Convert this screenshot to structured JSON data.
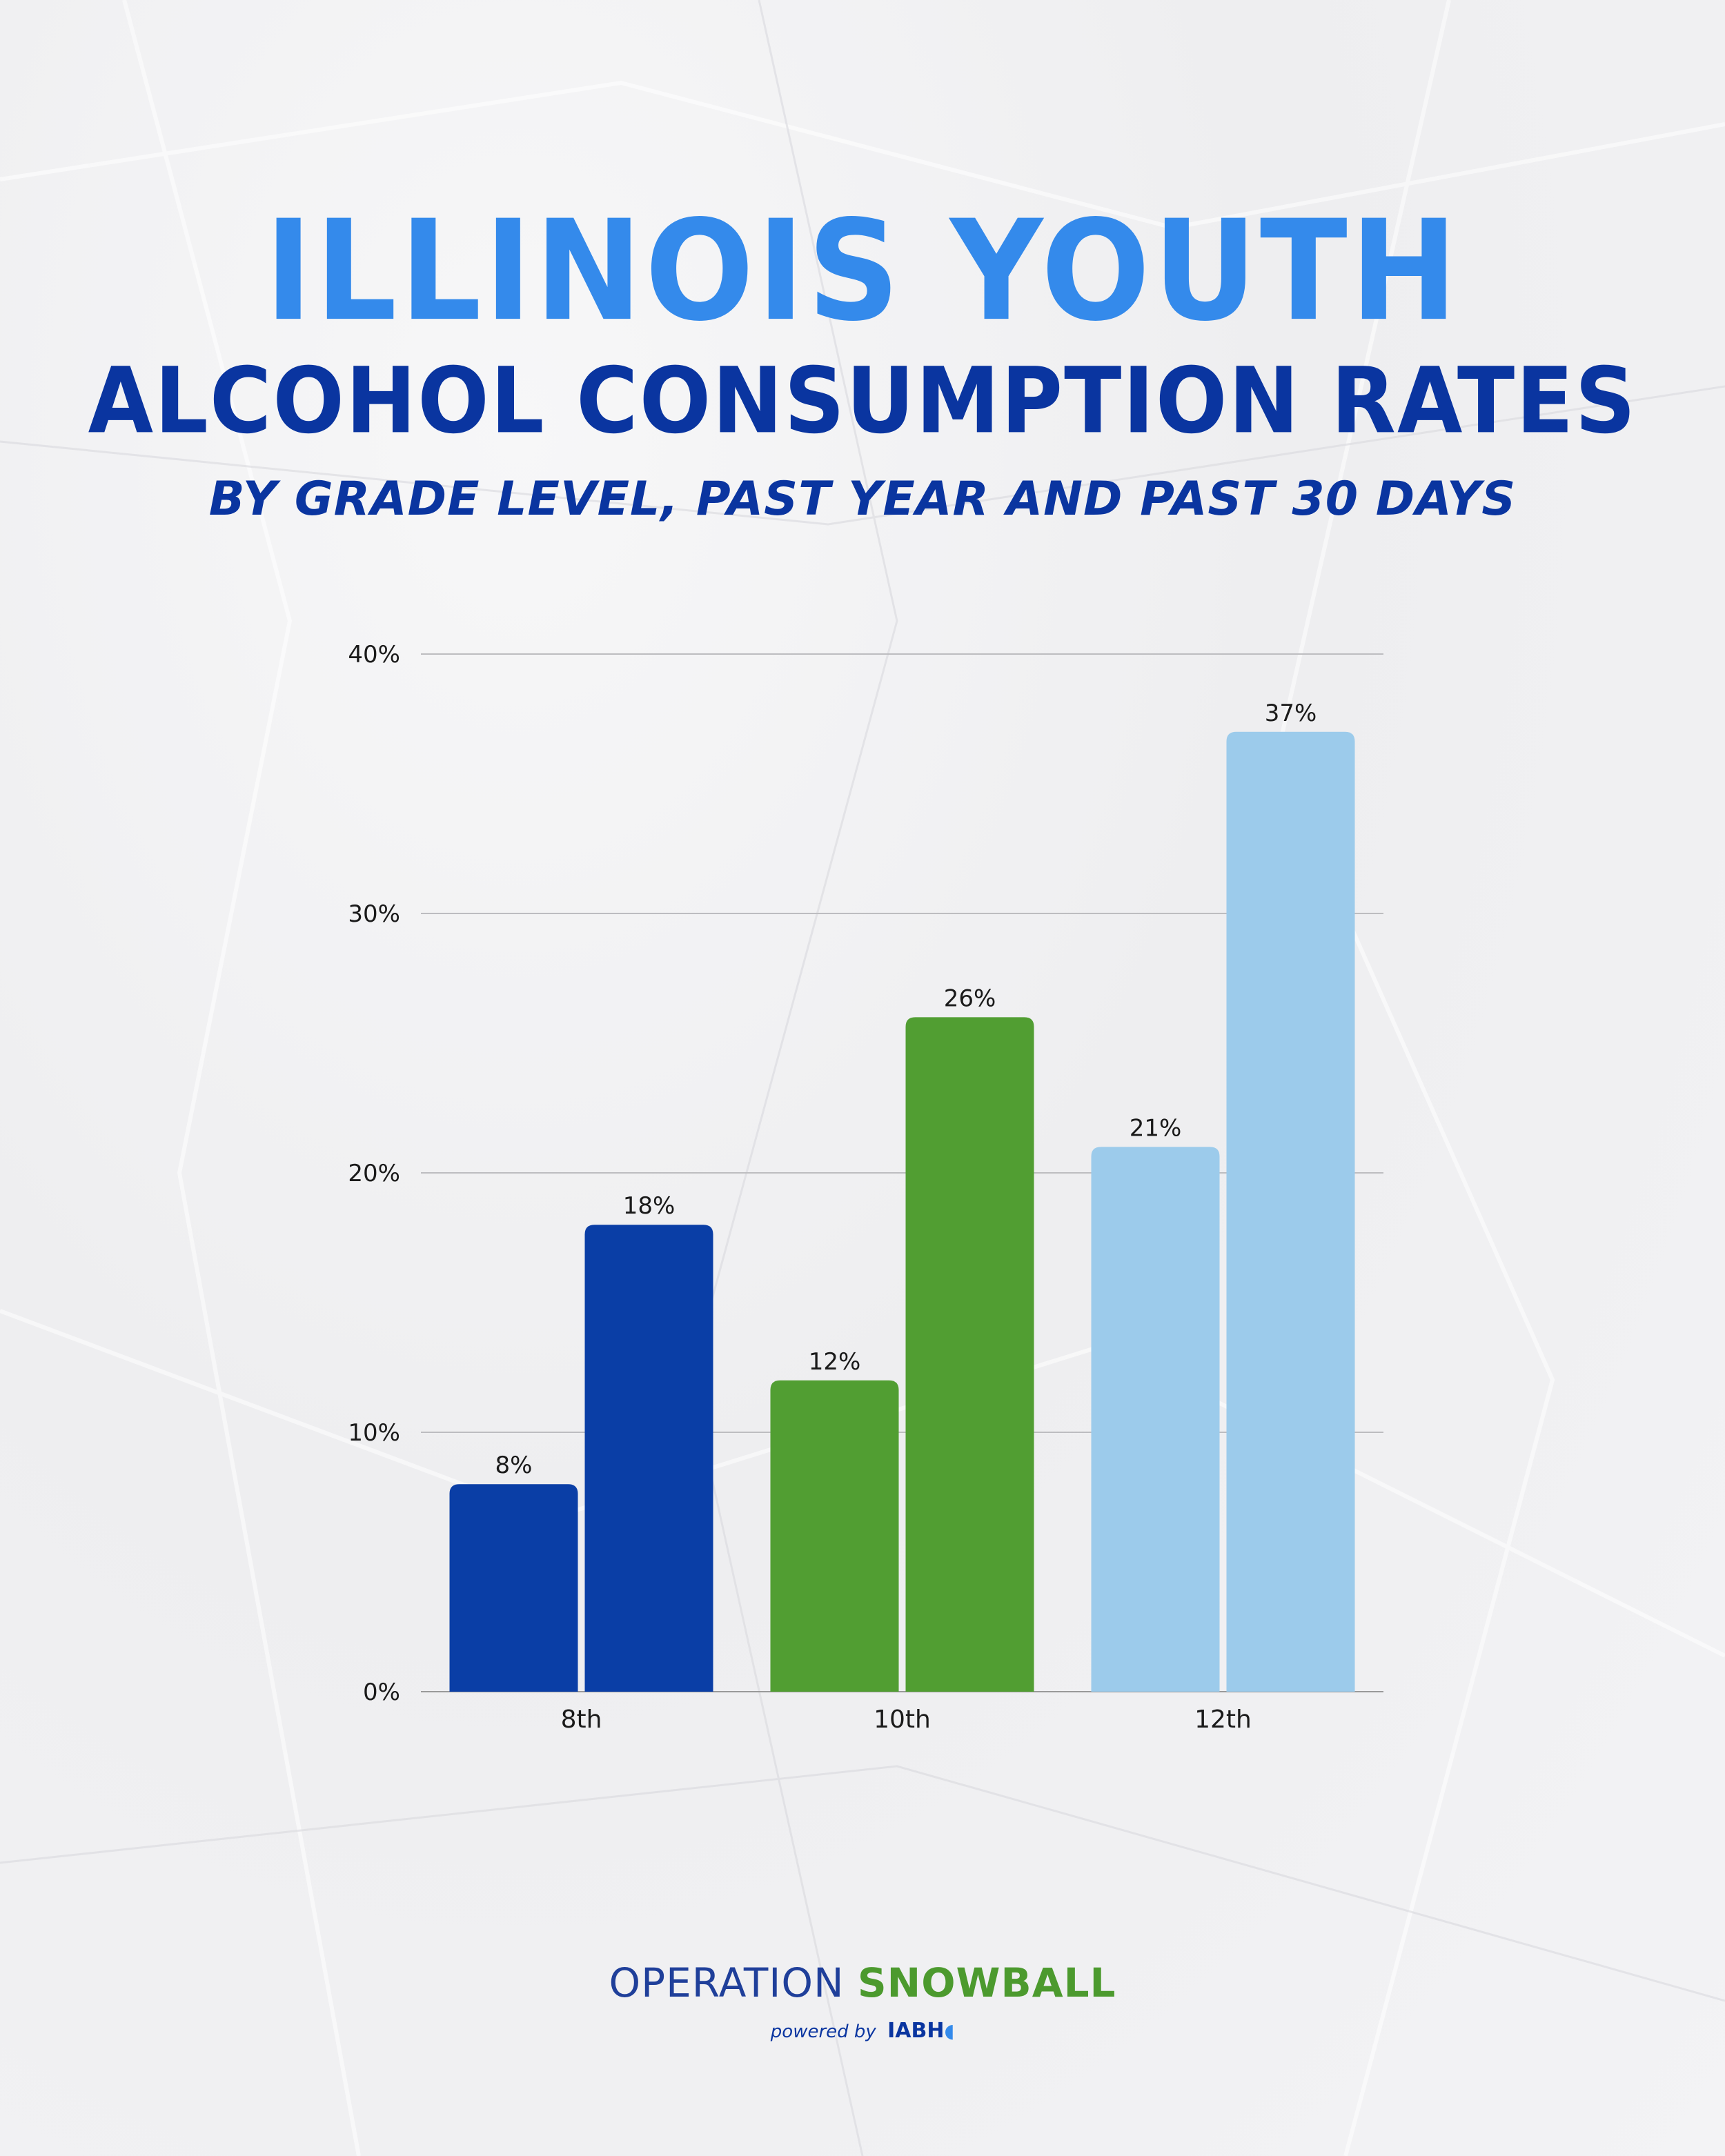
{
  "header": {
    "title_line1": "ILLINOIS YOUTH",
    "title_line2": "ALCOHOL CONSUMPTION RATES",
    "subtitle": "BY GRADE LEVEL, PAST YEAR AND PAST 30 DAYS"
  },
  "chart_data": {
    "type": "bar",
    "title": "ILLINOIS YOUTH ALCOHOL CONSUMPTION RATES",
    "subtitle": "BY GRADE LEVEL, PAST YEAR AND PAST 30 DAYS",
    "xlabel": "",
    "ylabel": "",
    "categories": [
      "8th",
      "10th",
      "12th"
    ],
    "series": [
      {
        "values": [
          8,
          12,
          21
        ]
      },
      {
        "values": [
          18,
          26,
          37
        ]
      }
    ],
    "category_colors": [
      "#0a3ea6",
      "#519e32",
      "#9ccbeb"
    ],
    "value_labels": [
      [
        "8%",
        "18%"
      ],
      [
        "12%",
        "26%"
      ],
      [
        "21%",
        "37%"
      ]
    ],
    "ylim": [
      0,
      40
    ],
    "yticks": [
      0,
      10,
      20,
      30,
      40
    ],
    "ytick_labels": [
      "0%",
      "10%",
      "20%",
      "30%",
      "40%"
    ],
    "grid": true,
    "legend": "none"
  },
  "footer": {
    "brand_part1": "OPERATION",
    "brand_part2": "SNOWBALL",
    "powered_by": "powered by",
    "powered_logo": "IABH"
  }
}
